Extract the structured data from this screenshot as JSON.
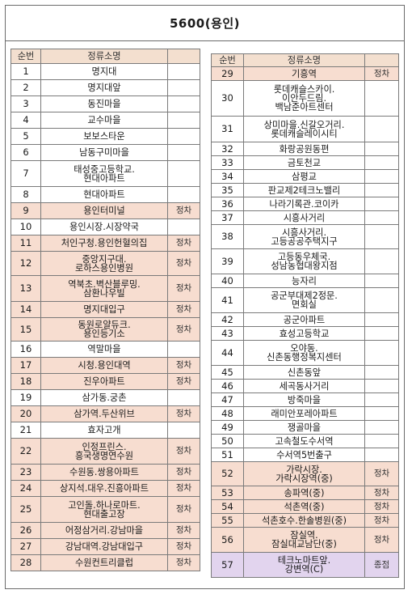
{
  "title": "5600(용인)",
  "headers": {
    "num": "순번",
    "name": "정류소명",
    "note": ""
  },
  "left_rows": [
    {
      "num": "1",
      "name": "명지대",
      "note": "",
      "hl": ""
    },
    {
      "num": "2",
      "name": "명지대앞",
      "note": "",
      "hl": ""
    },
    {
      "num": "3",
      "name": "동진마을",
      "note": "",
      "hl": ""
    },
    {
      "num": "4",
      "name": "교수마을",
      "note": "",
      "hl": ""
    },
    {
      "num": "5",
      "name": "보보스타운",
      "note": "",
      "hl": ""
    },
    {
      "num": "6",
      "name": "남동구미마을",
      "note": "",
      "hl": ""
    },
    {
      "num": "7",
      "name": "태성중고등학교.\n현대아파트",
      "note": "",
      "hl": ""
    },
    {
      "num": "8",
      "name": "현대아파트",
      "note": "",
      "hl": ""
    },
    {
      "num": "9",
      "name": "용인터미널",
      "note": "정차",
      "hl": "hl"
    },
    {
      "num": "10",
      "name": "용인시장.시장약국",
      "note": "",
      "hl": ""
    },
    {
      "num": "11",
      "name": "처인구청.용인헌혈의집",
      "note": "정차",
      "hl": "hl"
    },
    {
      "num": "12",
      "name": "중앙지구대.\n로하스용인병원",
      "note": "정차",
      "hl": "hl"
    },
    {
      "num": "13",
      "name": "역북초.벽산블루밍.\n삼환나우빌",
      "note": "정차",
      "hl": "hl"
    },
    {
      "num": "14",
      "name": "명지대입구",
      "note": "정차",
      "hl": "hl"
    },
    {
      "num": "15",
      "name": "동원로얄듀크.\n용인등기소",
      "note": "정차",
      "hl": "hl"
    },
    {
      "num": "16",
      "name": "역말마을",
      "note": "",
      "hl": ""
    },
    {
      "num": "17",
      "name": "시청.용인대역",
      "note": "정차",
      "hl": "hl"
    },
    {
      "num": "18",
      "name": "진우아파트",
      "note": "정차",
      "hl": "hl"
    },
    {
      "num": "19",
      "name": "삼가동.궁촌",
      "note": "",
      "hl": ""
    },
    {
      "num": "20",
      "name": "삼가역.두산위브",
      "note": "정차",
      "hl": "hl"
    },
    {
      "num": "21",
      "name": "효자고개",
      "note": "",
      "hl": ""
    },
    {
      "num": "22",
      "name": "인정프린스.\n흥국생명연수원",
      "note": "정차",
      "hl": "hl"
    },
    {
      "num": "23",
      "name": "수원동.쌍용아파트",
      "note": "정차",
      "hl": "hl"
    },
    {
      "num": "24",
      "name": "상지석.대우.진흥아파트",
      "note": "정차",
      "hl": "hl"
    },
    {
      "num": "25",
      "name": "고인돌.하나로마트.\n현대출고장",
      "note": "정차",
      "hl": "hl"
    },
    {
      "num": "26",
      "name": "어정삼거리.강남마을",
      "note": "정차",
      "hl": "hl"
    },
    {
      "num": "27",
      "name": "강남대역.강남대입구",
      "note": "정차",
      "hl": "hl"
    },
    {
      "num": "28",
      "name": "수원컨트리클럽",
      "note": "정차",
      "hl": "hl"
    }
  ],
  "right_rows": [
    {
      "num": "29",
      "name": "기흥역",
      "note": "정차",
      "hl": "hl"
    },
    {
      "num": "30",
      "name": "롯데캐슬스카이.\n이안두드림.\n백남준아트센터",
      "note": "",
      "hl": ""
    },
    {
      "num": "31",
      "name": "상미마을.신갈오거리.\n롯데캐슬레이시티",
      "note": "",
      "hl": ""
    },
    {
      "num": "32",
      "name": "화랑공원동편",
      "note": "",
      "hl": ""
    },
    {
      "num": "33",
      "name": "금토천교",
      "note": "",
      "hl": ""
    },
    {
      "num": "34",
      "name": "삼평교",
      "note": "",
      "hl": ""
    },
    {
      "num": "35",
      "name": "판교제2테크노밸리",
      "note": "",
      "hl": ""
    },
    {
      "num": "36",
      "name": "나라기록관.코이카",
      "note": "",
      "hl": ""
    },
    {
      "num": "37",
      "name": "시흥사거리",
      "note": "",
      "hl": ""
    },
    {
      "num": "38",
      "name": "시흥사거리.\n고등공공주택지구",
      "note": "",
      "hl": ""
    },
    {
      "num": "39",
      "name": "고등동우체국.\n성남농협대왕지점",
      "note": "",
      "hl": ""
    },
    {
      "num": "40",
      "name": "능자리",
      "note": "",
      "hl": ""
    },
    {
      "num": "41",
      "name": "공군부대제2정문.\n면회실",
      "note": "",
      "hl": ""
    },
    {
      "num": "42",
      "name": "공군아파트",
      "note": "",
      "hl": ""
    },
    {
      "num": "43",
      "name": "효성고등학교",
      "note": "",
      "hl": ""
    },
    {
      "num": "44",
      "name": "오야동.\n신촌동행정복지센터",
      "note": "",
      "hl": ""
    },
    {
      "num": "45",
      "name": "신촌동앞",
      "note": "",
      "hl": ""
    },
    {
      "num": "46",
      "name": "세곡동사거리",
      "note": "",
      "hl": ""
    },
    {
      "num": "47",
      "name": "방죽마을",
      "note": "",
      "hl": ""
    },
    {
      "num": "48",
      "name": "래미안포레아파트",
      "note": "",
      "hl": ""
    },
    {
      "num": "49",
      "name": "쟁골마을",
      "note": "",
      "hl": ""
    },
    {
      "num": "50",
      "name": "고속철도수서역",
      "note": "",
      "hl": ""
    },
    {
      "num": "51",
      "name": "수서역5번출구",
      "note": "",
      "hl": ""
    },
    {
      "num": "52",
      "name": "가락시장.\n가락시장역(중)",
      "note": "정차",
      "hl": "hl"
    },
    {
      "num": "53",
      "name": "송파역(중)",
      "note": "정차",
      "hl": "hl"
    },
    {
      "num": "54",
      "name": "석촌역(중)",
      "note": "정차",
      "hl": "hl"
    },
    {
      "num": "55",
      "name": "석촌호수.한솔병원(중)",
      "note": "정차",
      "hl": "hl"
    },
    {
      "num": "56",
      "name": "잠실역.\n잠실대교남단(중)",
      "note": "정차",
      "hl": "hl"
    },
    {
      "num": "57",
      "name": "테크노마트앞.\n강변역(C)",
      "note": "종점",
      "hl": "pl"
    }
  ]
}
